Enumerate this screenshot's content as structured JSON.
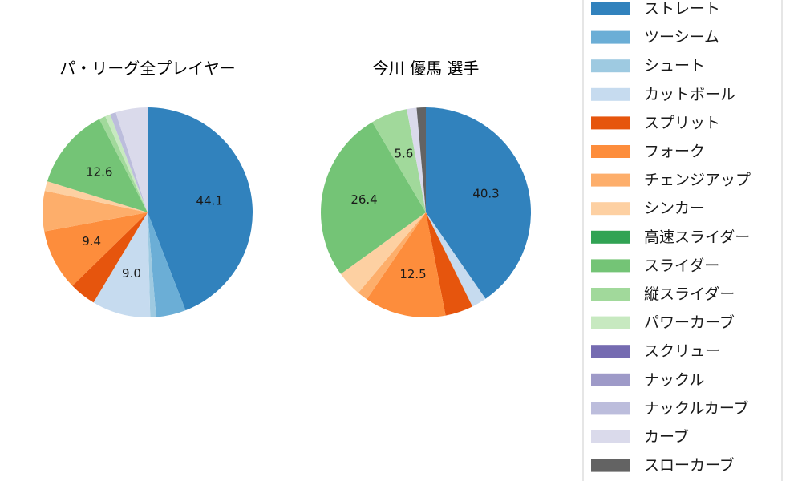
{
  "chart_data": {
    "type": "pie",
    "categories": [
      "ストレート",
      "ツーシーム",
      "シュート",
      "カットボール",
      "スプリット",
      "フォーク",
      "チェンジアップ",
      "シンカー",
      "高速スライダー",
      "スライダー",
      "縦スライダー",
      "パワーカーブ",
      "スクリュー",
      "ナックル",
      "ナックルカーブ",
      "カーブ",
      "スローカーブ"
    ],
    "colors": [
      "#3182bd",
      "#6baed6",
      "#9ecae1",
      "#c6dbef",
      "#e6550d",
      "#fd8d3c",
      "#fdae6b",
      "#fdd0a2",
      "#31a354",
      "#74c476",
      "#a1d99b",
      "#c7e9c0",
      "#756bb1",
      "#9e9ac8",
      "#bcbddc",
      "#dadaeb",
      "#636363"
    ],
    "legend": "right",
    "series": [
      {
        "name": "パ・リーグ全プレイヤー",
        "values": [
          44.1,
          4.6,
          0.9,
          9.0,
          4.1,
          9.4,
          6.2,
          1.5,
          0.0,
          12.6,
          1.0,
          0.8,
          0.0,
          0.0,
          0.9,
          4.9,
          0.0
        ],
        "labels": [
          "44.1",
          "",
          "",
          "9.0",
          "",
          "9.4",
          "",
          "",
          "",
          "12.6",
          "",
          "",
          "",
          "",
          "",
          "",
          ""
        ]
      },
      {
        "name": "今川 優馬  選手",
        "values": [
          40.3,
          0.0,
          0.0,
          2.3,
          4.3,
          12.5,
          1.6,
          3.9,
          0.0,
          26.4,
          5.6,
          0.0,
          0.0,
          0.0,
          0.0,
          1.5,
          1.4
        ],
        "labels": [
          "40.3",
          "",
          "",
          "",
          "",
          "12.5",
          "",
          "",
          "",
          "26.4",
          "5.6",
          "",
          "",
          "",
          "",
          "",
          ""
        ]
      }
    ]
  }
}
